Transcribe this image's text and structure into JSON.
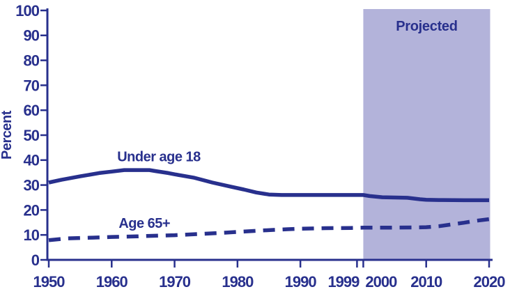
{
  "colors": {
    "navy": "#28308d",
    "projection_fill": "#b3b3da",
    "background": "#ffffff"
  },
  "chart_data": {
    "type": "line",
    "title": "",
    "xlabel": "",
    "ylabel": "Percent",
    "ylim": [
      0,
      100
    ],
    "yticks": [
      0,
      10,
      20,
      30,
      40,
      50,
      60,
      70,
      80,
      90,
      100
    ],
    "xlim": [
      1950,
      2020
    ],
    "xticks": [
      1950,
      1960,
      1970,
      1980,
      1990,
      1999,
      2000,
      2010,
      2020
    ],
    "grid": "off",
    "legend_position": "inline-labels",
    "projected_region": {
      "label": "Projected",
      "from": 2000,
      "to": 2020
    },
    "series": [
      {
        "name": "Under age 18",
        "line_style": "solid",
        "label_anchor": {
          "year": 1967.5,
          "value": 41.6
        },
        "points": [
          [
            1950,
            31
          ],
          [
            1952,
            32.1
          ],
          [
            1955,
            33.5
          ],
          [
            1958,
            34.8
          ],
          [
            1960,
            35.4
          ],
          [
            1962,
            36
          ],
          [
            1966,
            36
          ],
          [
            1967,
            35.6
          ],
          [
            1969,
            34.8
          ],
          [
            1970,
            34.3
          ],
          [
            1973,
            33
          ],
          [
            1976,
            31
          ],
          [
            1979,
            29.3
          ],
          [
            1981,
            28.2
          ],
          [
            1983,
            27
          ],
          [
            1985,
            26.2
          ],
          [
            1987,
            26
          ],
          [
            1990,
            26
          ],
          [
            1995,
            26
          ],
          [
            2000,
            26
          ],
          [
            2001,
            25.6
          ],
          [
            2003,
            25.1
          ],
          [
            2007,
            24.9
          ],
          [
            2009,
            24.3
          ],
          [
            2010,
            24.1
          ],
          [
            2012,
            24
          ],
          [
            2016,
            23.9
          ],
          [
            2020,
            23.9
          ]
        ]
      },
      {
        "name": "Age 65+",
        "line_style": "dashed",
        "label_anchor": {
          "year": 1965.2,
          "value": 14.8
        },
        "points": [
          [
            1950,
            7.9
          ],
          [
            1953,
            8.6
          ],
          [
            1957,
            8.9
          ],
          [
            1960,
            9.2
          ],
          [
            1964,
            9.4
          ],
          [
            1966,
            9.6
          ],
          [
            1970,
            9.9
          ],
          [
            1974,
            10.4
          ],
          [
            1978,
            10.9
          ],
          [
            1980,
            11.2
          ],
          [
            1984,
            11.8
          ],
          [
            1988,
            12.3
          ],
          [
            1990,
            12.5
          ],
          [
            1994,
            12.7
          ],
          [
            1998,
            12.8
          ],
          [
            2000,
            12.9
          ],
          [
            2004,
            12.9
          ],
          [
            2008,
            13
          ],
          [
            2010,
            13.1
          ],
          [
            2012,
            13.5
          ],
          [
            2014,
            14.2
          ],
          [
            2016,
            14.9
          ],
          [
            2018,
            15.7
          ],
          [
            2020,
            16.3
          ]
        ]
      }
    ]
  }
}
